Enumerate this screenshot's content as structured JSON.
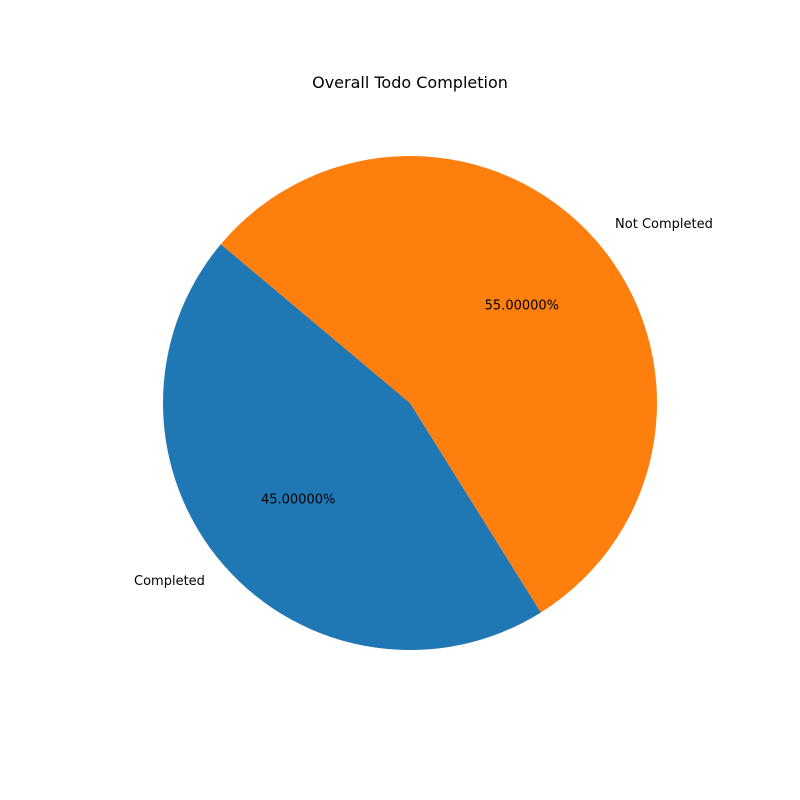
{
  "chart_data": {
    "type": "pie",
    "title": "Overall Todo Completion",
    "slices": [
      {
        "label": "Completed",
        "value": 45,
        "pct_label": "45.00000%",
        "color": "#1f77b4"
      },
      {
        "label": "Not Completed",
        "value": 55,
        "pct_label": "55.00000%",
        "color": "#ff7f0e"
      }
    ],
    "start_angle_deg": 140,
    "direction": "counterclockwise"
  }
}
